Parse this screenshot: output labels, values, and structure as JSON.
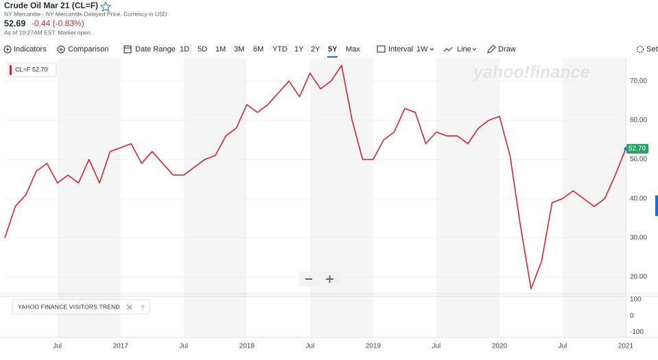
{
  "header": {
    "title": "Crude Oil Mar 21 (CL=F)",
    "subtitle": "NY Mercantile - NY Mercantile Delayed Price. Currency in USD",
    "price": "52.69",
    "change": "-0.44 (-0.83%)",
    "as_of": "As of 10:27AM EST. Market open."
  },
  "toolbar": {
    "indicators": "Indicators",
    "comparison": "Comparison",
    "date_range": "Date Range",
    "ranges": [
      "1D",
      "5D",
      "1M",
      "3M",
      "6M",
      "YTD",
      "1Y",
      "2Y",
      "5Y",
      "Max"
    ],
    "interval": "Interval",
    "interval_value": "1W",
    "line": "Line",
    "draw": "Draw",
    "settings": "Settings"
  },
  "watermark": "yahoo!finance",
  "chart_data": {
    "type": "line",
    "x": [
      "2016-02",
      "2016-03",
      "2016-04",
      "2016-05",
      "2016-06",
      "2016-07",
      "2016-08",
      "2016-09",
      "2016-10",
      "2016-11",
      "2016-12",
      "2017-01",
      "2017-02",
      "2017-03",
      "2017-04",
      "2017-05",
      "2017-06",
      "2017-07",
      "2017-08",
      "2017-09",
      "2017-10",
      "2017-11",
      "2017-12",
      "2018-01",
      "2018-02",
      "2018-03",
      "2018-04",
      "2018-05",
      "2018-06",
      "2018-07",
      "2018-08",
      "2018-09",
      "2018-10",
      "2018-11",
      "2018-12",
      "2019-01",
      "2019-02",
      "2019-03",
      "2019-04",
      "2019-05",
      "2019-06",
      "2019-07",
      "2019-08",
      "2019-09",
      "2019-10",
      "2019-11",
      "2019-12",
      "2020-01",
      "2020-02",
      "2020-03",
      "2020-04",
      "2020-05",
      "2020-06",
      "2020-07",
      "2020-08",
      "2020-09",
      "2020-10",
      "2020-11",
      "2020-12",
      "2021-01"
    ],
    "series": [
      {
        "name": "CL=F",
        "color": "#d0252c",
        "values": [
          30,
          38,
          41,
          47,
          49,
          44,
          46,
          44,
          50,
          44,
          52,
          53,
          54,
          49,
          52,
          49,
          46,
          46,
          48,
          50,
          51,
          56,
          58,
          64,
          62,
          64,
          67,
          70,
          66,
          72,
          68,
          70,
          74,
          60,
          50,
          50,
          55,
          57,
          63,
          62,
          54,
          57,
          56,
          56,
          54,
          58,
          60,
          61,
          51,
          33,
          17,
          24,
          39,
          40,
          42,
          40,
          38,
          40,
          46,
          52.7
        ]
      }
    ],
    "last": {
      "value": 52.7,
      "label": "52.70"
    },
    "xlim": [
      "2016-02",
      "2021-01"
    ],
    "xticks": [
      {
        "value": "2016-07",
        "label": "Jul"
      },
      {
        "value": "2017-01",
        "label": "2017"
      },
      {
        "value": "2017-07",
        "label": "Jul"
      },
      {
        "value": "2018-01",
        "label": "2018"
      },
      {
        "value": "2018-07",
        "label": "Jul"
      },
      {
        "value": "2019-01",
        "label": "2019"
      },
      {
        "value": "2019-07",
        "label": "Jul"
      },
      {
        "value": "2020-01",
        "label": "2020"
      },
      {
        "value": "2020-07",
        "label": "Jul"
      },
      {
        "value": "2021-01",
        "label": "2021"
      }
    ],
    "ylim": [
      15.8,
      75.8
    ],
    "yticks": [
      {
        "value": 20,
        "label": "20.00"
      },
      {
        "value": 30,
        "label": "30.00"
      },
      {
        "value": 40,
        "label": "40.00"
      },
      {
        "value": 50,
        "label": "50.00"
      },
      {
        "value": 60,
        "label": "60.00"
      },
      {
        "value": 70,
        "label": "70.00"
      }
    ]
  },
  "indicator_panel": {
    "title": "YAHOO FINANCE VISITORS TREND",
    "ylim": [
      -132,
      121
    ],
    "yticks": [
      100,
      0,
      -100
    ]
  }
}
